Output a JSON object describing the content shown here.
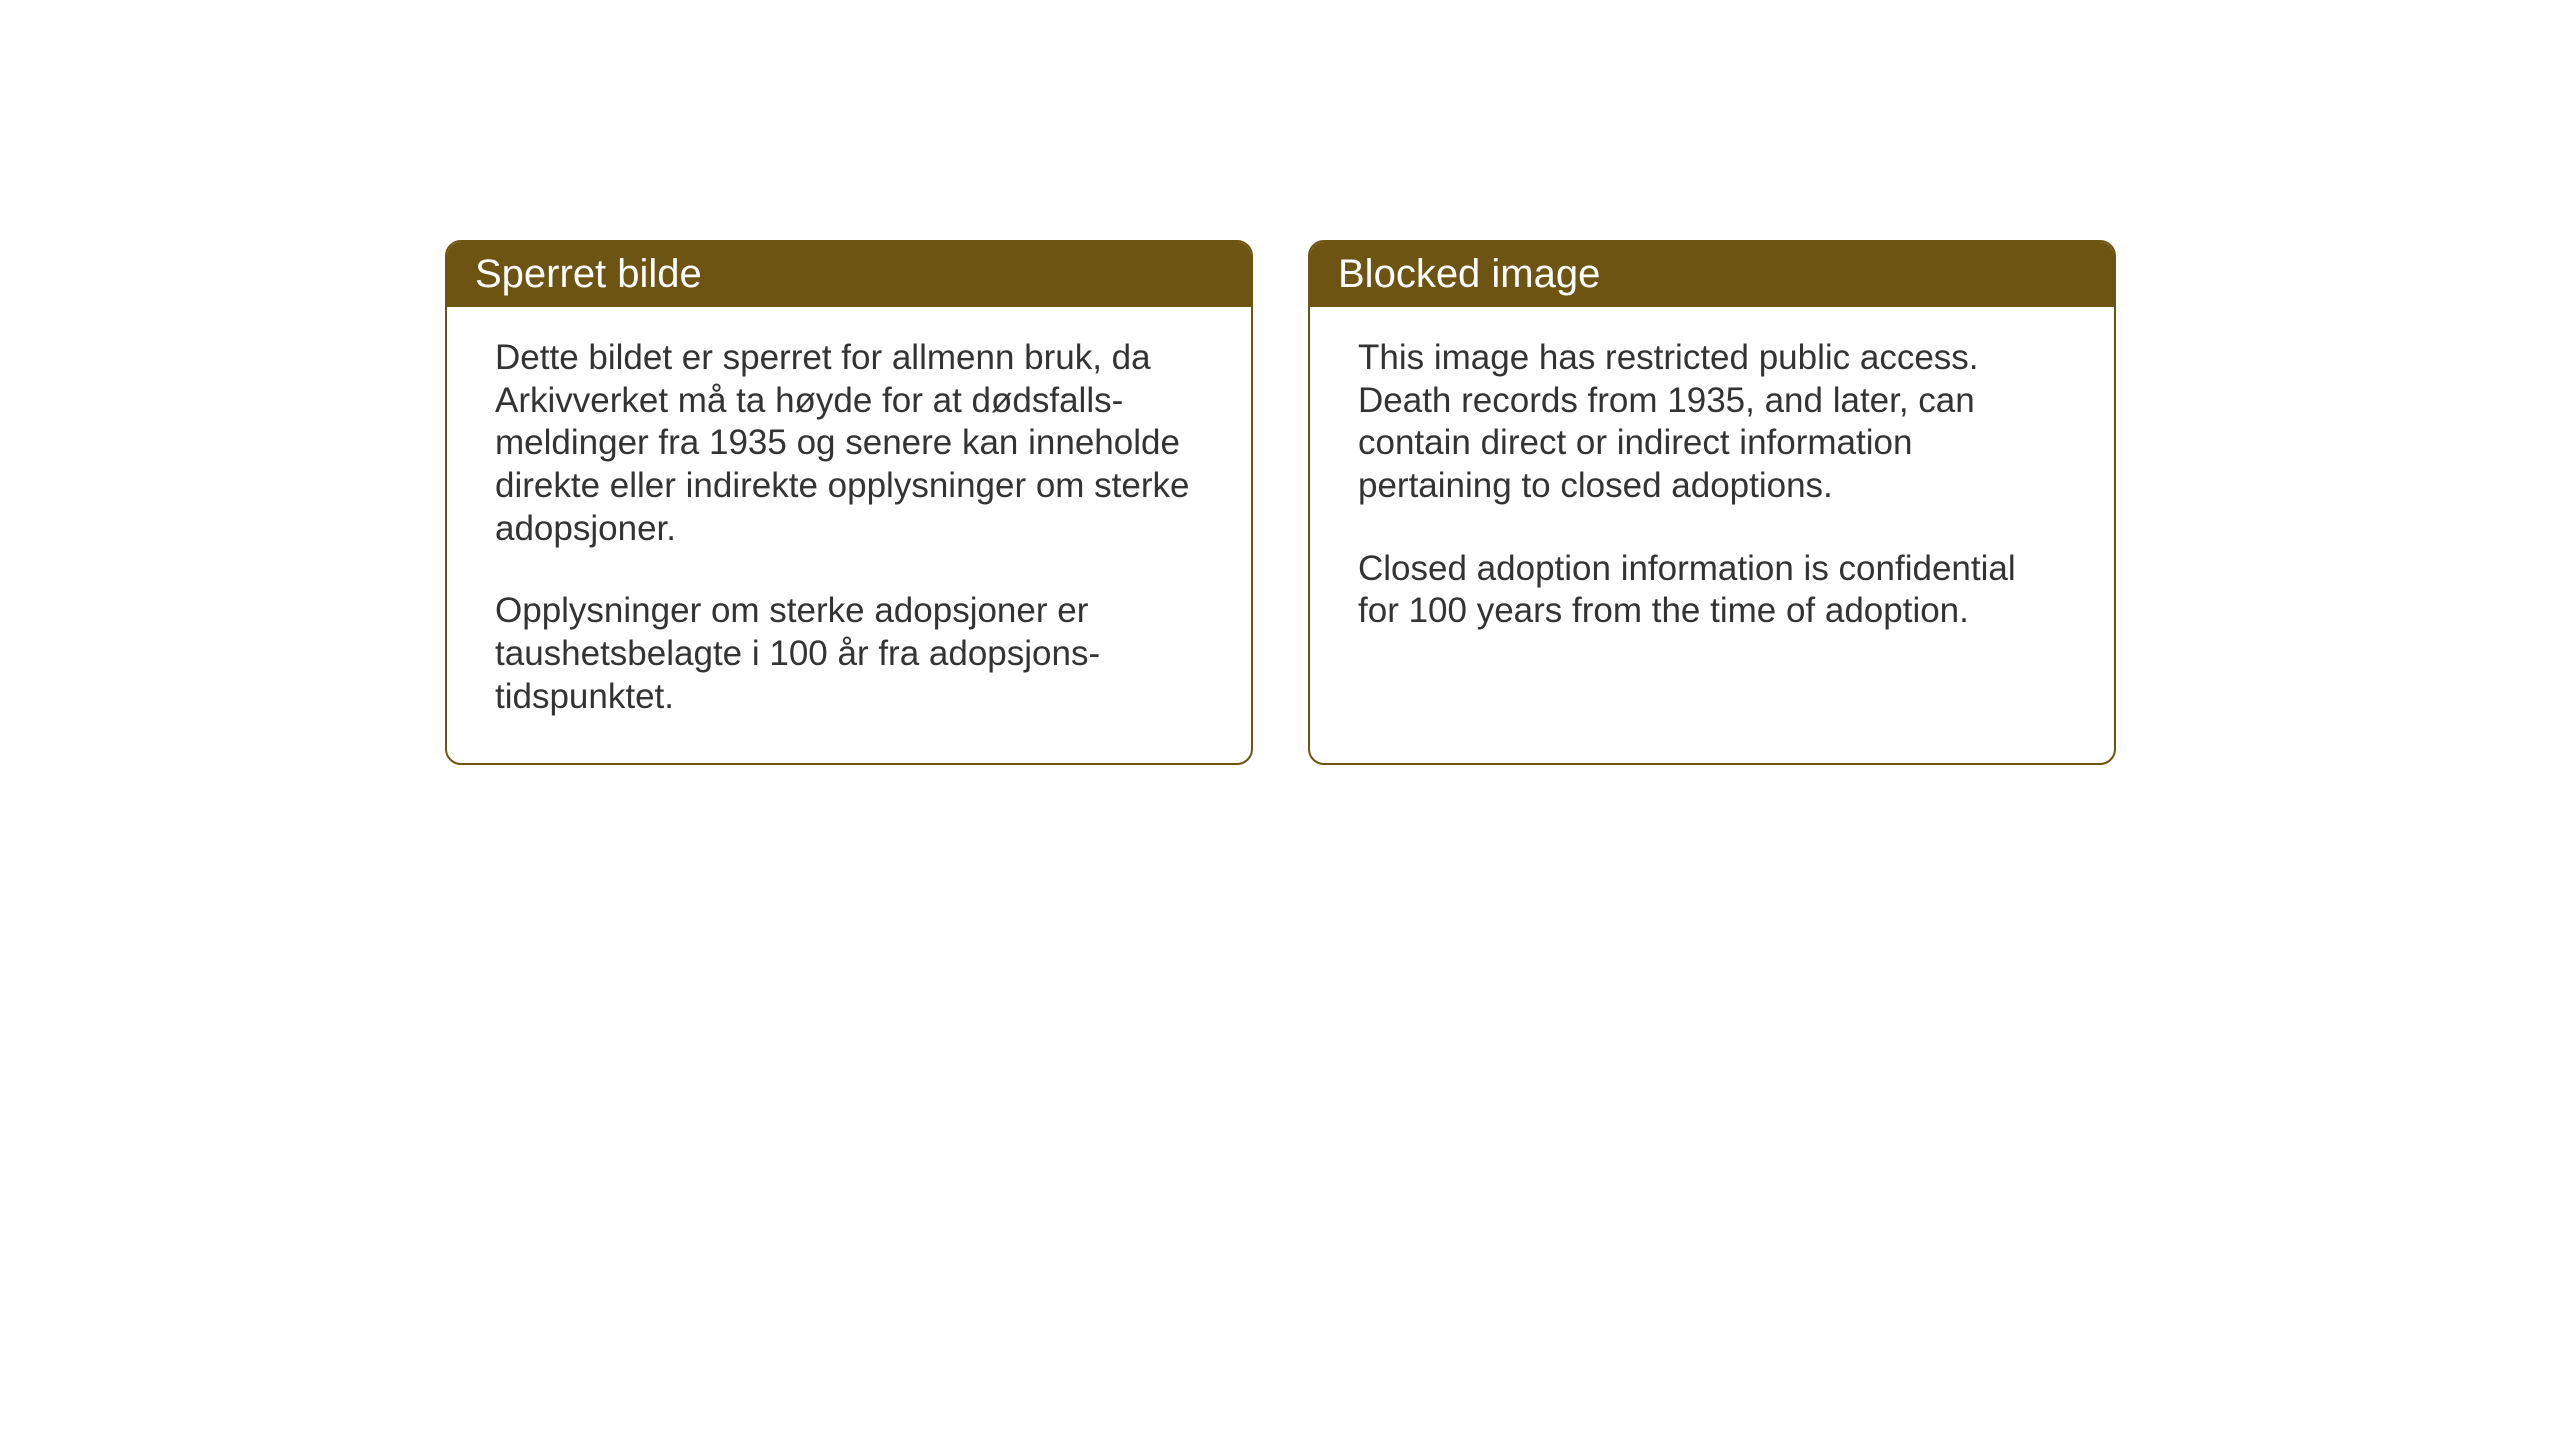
{
  "layout": {
    "background_color": "#ffffff",
    "card_border_color": "#6e5412",
    "card_border_radius": 16,
    "header_bg_color": "#6e5412",
    "header_text_color": "#ffffff",
    "body_text_color": "#333333",
    "header_fontsize": 40,
    "body_fontsize": 35
  },
  "cards": {
    "norwegian": {
      "title": "Sperret bilde",
      "para1": "Dette bildet er sperret for allmenn bruk, da Arkivverket må ta høyde for at dødsfalls-meldinger fra 1935 og senere kan inneholde direkte eller indirekte opplysninger om sterke adopsjoner.",
      "para2": "Opplysninger om sterke adopsjoner er taushetsbelagte i 100 år fra adopsjons-tidspunktet."
    },
    "english": {
      "title": "Blocked image",
      "para1": "This image has restricted public access. Death records from 1935, and later, can contain direct or indirect information pertaining to closed adoptions.",
      "para2": "Closed adoption information is confidential for 100 years from the time of adoption."
    }
  }
}
